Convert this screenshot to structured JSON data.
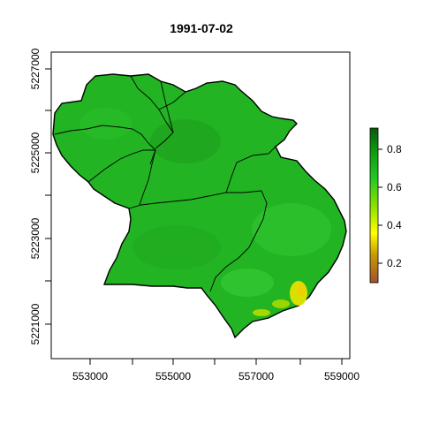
{
  "title": "1991-07-02",
  "x_ticks": [
    "553000",
    "555000",
    "557000",
    "559000"
  ],
  "y_ticks": [
    "5221000",
    "5223000",
    "5225000",
    "5227000"
  ],
  "legend": {
    "labels": [
      "0.2",
      "0.4",
      "0.6",
      "0.8"
    ],
    "colors": [
      "#a0522d",
      "#d4aa00",
      "#ffff00",
      "#7ec850",
      "#1ab11a",
      "#0d8a0d",
      "#0b5a0b"
    ]
  },
  "colors": {
    "fill_main": "#22b422",
    "fill_bright": "#3cc83c",
    "fill_yellow": "#e6e600",
    "fill_orange": "#cc9900",
    "outline": "#000000"
  }
}
